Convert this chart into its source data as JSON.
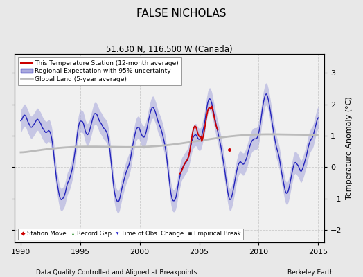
{
  "title": "FALSE NICHOLAS",
  "subtitle": "51.630 N, 116.500 W (Canada)",
  "xlabel_left": "Data Quality Controlled and Aligned at Breakpoints",
  "xlabel_right": "Berkeley Earth",
  "ylabel": "Temperature Anomaly (°C)",
  "xlim": [
    1989.5,
    2015.5
  ],
  "ylim": [
    -2.4,
    3.6
  ],
  "yticks": [
    -2,
    -1,
    0,
    1,
    2,
    3
  ],
  "xticks": [
    1990,
    1995,
    2000,
    2005,
    2010,
    2015
  ],
  "bg_color": "#e8e8e8",
  "plot_bg_color": "#f0f0f0",
  "regional_color": "#2222bb",
  "regional_fill": "#aaaadd",
  "station_color": "#cc0000",
  "global_color": "#bbbbbb",
  "legend_items": [
    {
      "label": "This Temperature Station (12-month average)",
      "color": "#cc0000",
      "lw": 1.5
    },
    {
      "label": "Regional Expectation with 95% uncertainty",
      "color": "#2222bb",
      "fill": "#aaaadd"
    },
    {
      "label": "Global Land (5-year average)",
      "color": "#bbbbbb",
      "lw": 2
    }
  ],
  "marker_items": [
    {
      "label": "Station Move",
      "color": "#cc0000",
      "marker": "D"
    },
    {
      "label": "Record Gap",
      "color": "#228822",
      "marker": "^"
    },
    {
      "label": "Time of Obs. Change",
      "color": "#2222cc",
      "marker": "v"
    },
    {
      "label": "Empirical Break",
      "color": "#222222",
      "marker": "s"
    }
  ]
}
